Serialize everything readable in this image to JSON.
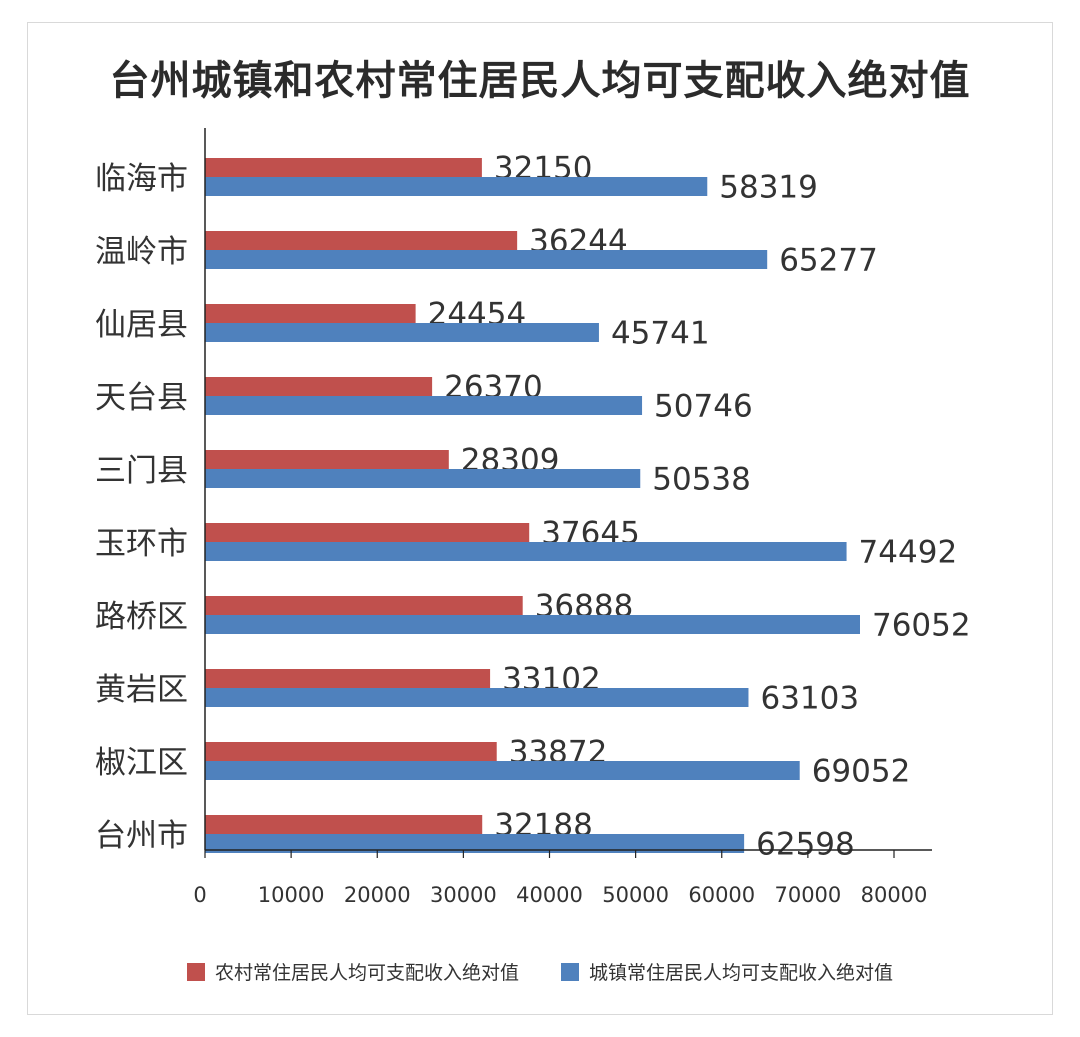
{
  "chart_data": {
    "type": "bar",
    "orientation": "horizontal",
    "title": "台州城镇和农村常住居民人均可支配收入绝对值",
    "categories": [
      "临海市",
      "温岭市",
      "仙居县",
      "天台县",
      "三门县",
      "玉环市",
      "路桥区",
      "黄岩区",
      "椒江区",
      "台州市"
    ],
    "series": [
      {
        "name": "农村常住居民人均可支配收入绝对值",
        "color": "#c0504d",
        "values": [
          32150,
          36244,
          24454,
          26370,
          28309,
          37645,
          36888,
          33102,
          33872,
          32188
        ]
      },
      {
        "name": "城镇常住居民人均可支配收入绝对值",
        "color": "#4f81bd",
        "values": [
          58319,
          65277,
          45741,
          50746,
          50538,
          74492,
          76052,
          63103,
          69052,
          62598
        ]
      }
    ],
    "xlim": [
      0,
      80000
    ],
    "xticks": [
      0,
      10000,
      20000,
      30000,
      40000,
      50000,
      60000,
      70000,
      80000
    ],
    "grid": false,
    "legend_position": "bottom"
  }
}
